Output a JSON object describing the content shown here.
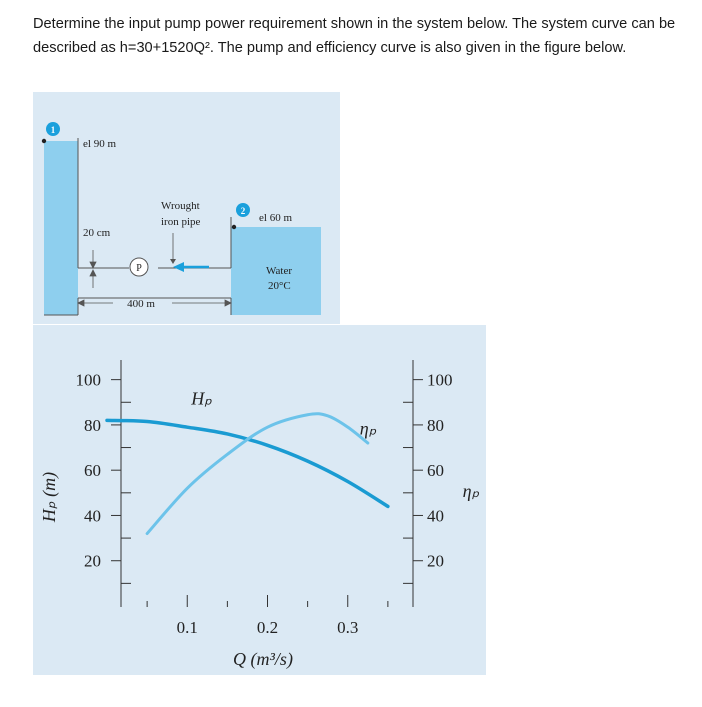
{
  "question": {
    "text": "Determine the input pump power requirement shown in the system below. The system curve can be described as h=30+1520Q². The pump and efficiency curve is also given in the figure below."
  },
  "system_diagram": {
    "point1_marker": "1",
    "point2_marker": "2",
    "elevation1": "el 90 m",
    "elevation2": "el 60 m",
    "pipe_material": [
      "Wrought",
      "iron pipe"
    ],
    "pipe_diameter": "20 cm",
    "pump_symbol": "P",
    "pipe_length": "400 m",
    "fluid": [
      "Water",
      "20°C"
    ],
    "colors": {
      "water": "#8ecfee",
      "marker": "#1aa0dc",
      "flow_arrow": "#1aa0dc",
      "background": "#dbe9f4"
    }
  },
  "chart_data": {
    "type": "line",
    "xlabel": "Q (m³/s)",
    "ylabel_left": "Hₚ (m)",
    "ylabel_right": "ηₚ",
    "x_ticks": [
      "0.1",
      "0.2",
      "0.3"
    ],
    "y_ticks_left": [
      "20",
      "40",
      "60",
      "80",
      "100"
    ],
    "y_ticks_right": [
      "20",
      "40",
      "60",
      "80",
      "100"
    ],
    "xlim": [
      0,
      0.4
    ],
    "ylim": [
      0,
      110
    ],
    "series": [
      {
        "name": "Hₚ",
        "color": "#1a9bd2",
        "x": [
          0.0,
          0.05,
          0.1,
          0.15,
          0.2,
          0.25,
          0.3,
          0.35
        ],
        "y": [
          82,
          81.5,
          79,
          76,
          71,
          64,
          55,
          44
        ]
      },
      {
        "name": "ηₚ",
        "color": "#6cc3ea",
        "x": [
          0.05,
          0.1,
          0.15,
          0.2,
          0.25,
          0.275,
          0.3,
          0.325
        ],
        "y": [
          32,
          52,
          67,
          79,
          84.5,
          84,
          79,
          72
        ]
      }
    ]
  }
}
